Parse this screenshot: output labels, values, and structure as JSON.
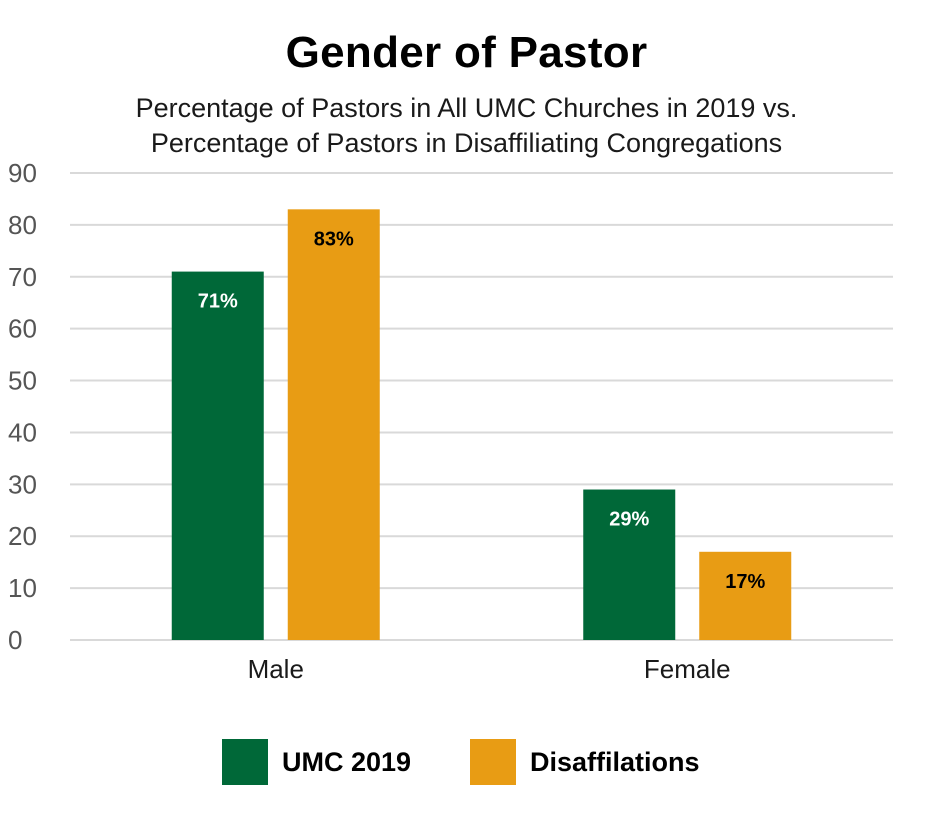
{
  "chart_data": {
    "type": "bar",
    "title": "Gender of Pastor",
    "subtitle": [
      "Percentage of Pastors in All UMC Churches in 2019 vs.",
      "Percentage of Pastors in Disaffiliating Congregations"
    ],
    "categories": [
      "Male",
      "Female"
    ],
    "series": [
      {
        "name": "UMC 2019",
        "values": [
          71,
          29
        ],
        "labels": [
          "71%",
          "29%"
        ],
        "color": "#006838",
        "label_color": "#ffffff"
      },
      {
        "name": "Disaffilations",
        "values": [
          83,
          17
        ],
        "labels": [
          "83%",
          "17%"
        ],
        "color": "#E89C14",
        "label_color": "#000000"
      }
    ],
    "ylim": [
      0,
      90
    ],
    "yticks": [
      0,
      10,
      20,
      30,
      40,
      50,
      60,
      70,
      80,
      90
    ],
    "grid": true,
    "legend_position": "bottom"
  }
}
